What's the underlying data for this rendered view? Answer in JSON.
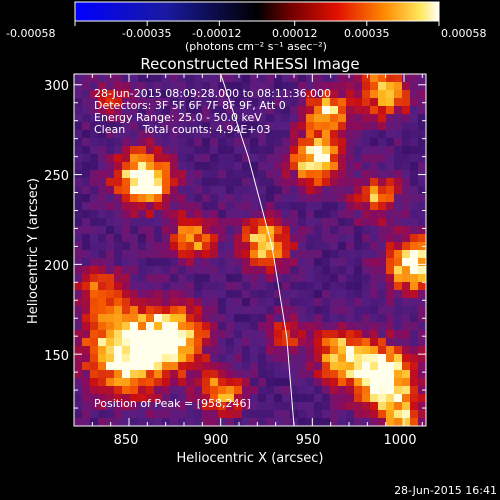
{
  "colorbar": {
    "tick_labels": [
      "-0.00058",
      "-0.00035",
      "-0.00012",
      "0.00012",
      "0.00035",
      "0.00058"
    ],
    "tick_values": [
      -0.00058,
      -0.00035,
      -0.00012,
      0.00012,
      0.00035,
      0.00058
    ],
    "range": [
      -0.00058,
      0.00058
    ],
    "units": "(photons cm⁻² s⁻¹ asec⁻²)"
  },
  "chart_data": {
    "type": "heatmap",
    "title": "Reconstructed RHESSI Image",
    "xlabel": "Heliocentric X (arcsec)",
    "ylabel": "Heliocentric Y (arcsec)",
    "xlim": [
      820,
      1012
    ],
    "ylim": [
      110,
      306
    ],
    "x_ticks": [
      850,
      900,
      950,
      1000
    ],
    "y_ticks": [
      150,
      200,
      250,
      300
    ],
    "colormap": "heat-with-blue-negative",
    "annotations": [
      "28-Jun-2015 08:09:28.000 to 08:11:36.000",
      "Detectors: 3F 5F 6F 7F 8F 9F, Att 0",
      "Energy Range: 25.0 - 50.0 keV",
      "Clean     Total counts: 4.94E+03"
    ],
    "peak_label": "Position of Peak = [958,246]",
    "peak": [
      958,
      246
    ],
    "limb_curve": [
      [
        900,
        306
      ],
      [
        915,
        260
      ],
      [
        928,
        210
      ],
      [
        936,
        160
      ],
      [
        940,
        110
      ]
    ],
    "sources": [
      {
        "x": 858,
        "y": 248,
        "sigma": 11,
        "amp": 1.0
      },
      {
        "x": 848,
        "y": 150,
        "sigma": 16,
        "amp": 0.95
      },
      {
        "x": 875,
        "y": 160,
        "sigma": 12,
        "amp": 0.8
      },
      {
        "x": 835,
        "y": 185,
        "sigma": 10,
        "amp": 0.5
      },
      {
        "x": 885,
        "y": 215,
        "sigma": 9,
        "amp": 0.6
      },
      {
        "x": 925,
        "y": 212,
        "sigma": 10,
        "amp": 0.75
      },
      {
        "x": 952,
        "y": 258,
        "sigma": 10,
        "amp": 0.85
      },
      {
        "x": 958,
        "y": 285,
        "sigma": 9,
        "amp": 0.7
      },
      {
        "x": 935,
        "y": 160,
        "sigma": 8,
        "amp": 0.45
      },
      {
        "x": 990,
        "y": 136,
        "sigma": 13,
        "amp": 1.0
      },
      {
        "x": 965,
        "y": 150,
        "sigma": 10,
        "amp": 0.7
      },
      {
        "x": 1005,
        "y": 200,
        "sigma": 11,
        "amp": 0.85
      },
      {
        "x": 985,
        "y": 238,
        "sigma": 9,
        "amp": 0.55
      },
      {
        "x": 990,
        "y": 296,
        "sigma": 10,
        "amp": 0.7
      },
      {
        "x": 840,
        "y": 292,
        "sigma": 7,
        "amp": 0.4
      },
      {
        "x": 900,
        "y": 128,
        "sigma": 9,
        "amp": 0.6
      },
      {
        "x": 1000,
        "y": 112,
        "sigma": 7,
        "amp": 0.6
      }
    ]
  },
  "footer": {
    "timestamp": "28-Jun-2015 16:41"
  }
}
